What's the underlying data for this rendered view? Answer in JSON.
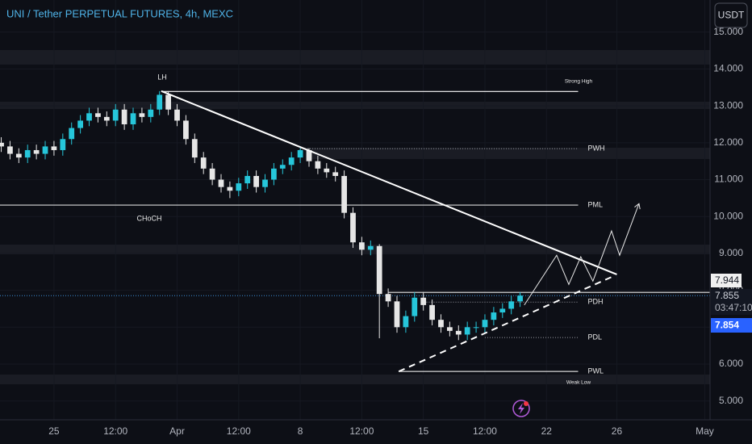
{
  "chart_data": {
    "type": "candlestick",
    "title": "UNI / Tether PERPETUAL FUTURES, 4h, MEXC",
    "currency_button": "USDT",
    "x": [
      -3,
      -2.5,
      -2,
      -1.5,
      -1,
      -0.5,
      0,
      0.5,
      1,
      1.5,
      2,
      2.5,
      3,
      3.5,
      4,
      4.5,
      5,
      5.5,
      6,
      6.5,
      7,
      7.5,
      8,
      8.5,
      9,
      9.5,
      10,
      10.5,
      11,
      11.5,
      12,
      12.5,
      13,
      13.5,
      14,
      14.5,
      15,
      15.5,
      16,
      16.5,
      17,
      17.5,
      18,
      18.5,
      19,
      19.5,
      20,
      20.5,
      21,
      21.5,
      22,
      22.5,
      23,
      23.5,
      24,
      24.5,
      25,
      25.5,
      26,
      26.5
    ],
    "open": [
      12.0,
      11.9,
      11.7,
      11.6,
      11.8,
      11.7,
      11.9,
      11.8,
      12.1,
      12.4,
      12.6,
      12.8,
      12.7,
      12.6,
      12.9,
      12.5,
      12.8,
      12.7,
      12.9,
      13.3,
      12.9,
      12.6,
      12.1,
      11.6,
      11.3,
      11.0,
      10.8,
      10.7,
      10.9,
      11.1,
      10.8,
      11.0,
      11.3,
      11.4,
      11.6,
      11.8,
      11.5,
      11.3,
      11.2,
      11.1,
      10.1,
      9.3,
      9.1,
      9.2,
      7.9,
      7.7,
      7.0,
      7.3,
      7.8,
      7.6,
      7.2,
      7.0,
      6.9,
      6.8,
      7.0,
      7.0,
      7.2,
      7.4,
      7.5,
      7.7
    ],
    "high": [
      12.15,
      12.05,
      11.85,
      11.95,
      11.95,
      12.05,
      12.05,
      12.25,
      12.55,
      12.75,
      12.95,
      12.95,
      12.85,
      13.05,
      13.05,
      12.95,
      12.95,
      13.05,
      13.4,
      13.4,
      13.05,
      12.75,
      12.25,
      11.75,
      11.45,
      11.15,
      10.95,
      11.05,
      11.25,
      11.25,
      11.15,
      11.45,
      11.55,
      11.75,
      11.85,
      11.85,
      11.65,
      11.45,
      11.35,
      11.25,
      10.25,
      9.45,
      9.35,
      9.25,
      8.05,
      7.85,
      7.45,
      7.95,
      7.95,
      7.75,
      7.35,
      7.15,
      7.05,
      7.15,
      7.15,
      7.35,
      7.55,
      7.65,
      7.85,
      7.95
    ],
    "low": [
      11.75,
      11.55,
      11.45,
      11.45,
      11.55,
      11.55,
      11.65,
      11.65,
      11.95,
      12.25,
      12.45,
      12.55,
      12.45,
      12.45,
      12.35,
      12.35,
      12.55,
      12.55,
      12.75,
      12.75,
      12.45,
      11.95,
      11.45,
      11.15,
      10.85,
      10.65,
      10.5,
      10.55,
      10.75,
      10.65,
      10.65,
      10.85,
      11.15,
      11.25,
      11.45,
      11.35,
      11.15,
      11.05,
      10.95,
      9.95,
      9.15,
      8.95,
      8.95,
      6.7,
      7.55,
      6.85,
      6.85,
      7.15,
      7.45,
      7.05,
      6.85,
      6.75,
      6.65,
      6.65,
      6.85,
      6.85,
      7.05,
      7.25,
      7.35,
      7.55
    ],
    "close": [
      11.9,
      11.7,
      11.6,
      11.8,
      11.7,
      11.9,
      11.8,
      12.1,
      12.4,
      12.6,
      12.8,
      12.7,
      12.6,
      12.9,
      12.5,
      12.8,
      12.7,
      12.9,
      13.3,
      12.9,
      12.6,
      12.1,
      11.6,
      11.3,
      11.0,
      10.8,
      10.7,
      10.9,
      11.1,
      10.8,
      11.0,
      11.3,
      11.4,
      11.6,
      11.8,
      11.5,
      11.3,
      11.2,
      11.1,
      10.1,
      9.3,
      9.1,
      9.2,
      7.9,
      7.7,
      7.0,
      7.3,
      7.8,
      7.6,
      7.2,
      7.0,
      6.9,
      6.8,
      7.0,
      7.0,
      7.2,
      7.4,
      7.5,
      7.7,
      7.855
    ],
    "up_color": "#26c6da",
    "down_color": "#e6e6e6",
    "xlim": [
      -3.07,
      37.3
    ],
    "xticks": [
      {
        "value": 0,
        "label": "25"
      },
      {
        "value": 3.5,
        "label": "12:00"
      },
      {
        "value": 7,
        "label": "Apr"
      },
      {
        "value": 10.5,
        "label": "12:00"
      },
      {
        "value": 14,
        "label": "8"
      },
      {
        "value": 17.5,
        "label": "12:00"
      },
      {
        "value": 21,
        "label": "15"
      },
      {
        "value": 24.5,
        "label": "12:00"
      },
      {
        "value": 28,
        "label": "22"
      },
      {
        "value": 32,
        "label": "26"
      },
      {
        "value": 37,
        "label": "May"
      }
    ],
    "ylim": [
      4.49,
      15.87
    ],
    "yticks": [
      {
        "value": 5,
        "label": "5.000"
      },
      {
        "value": 6,
        "label": "6.000"
      },
      {
        "value": 7,
        "label": "7.000"
      },
      {
        "value": 8,
        "label": "8.000"
      },
      {
        "value": 9,
        "label": "9.000"
      },
      {
        "value": 10,
        "label": "10.000"
      },
      {
        "value": 11,
        "label": "11.000"
      },
      {
        "value": 12,
        "label": "12.000"
      },
      {
        "value": 13,
        "label": "13.000"
      },
      {
        "value": 14,
        "label": "14.000"
      },
      {
        "value": 15,
        "label": "15.000"
      }
    ],
    "levels": [
      {
        "label": "PWH",
        "value": 11.84,
        "from": 14,
        "to": 29.8,
        "dotted": true
      },
      {
        "label": "PML",
        "value": 10.31,
        "from": -3.07,
        "to": 29.8,
        "dotted": false
      },
      {
        "label": "PDH",
        "value": 7.68,
        "from": 20.9,
        "to": 29.8,
        "dotted": true
      },
      {
        "label": "PDL",
        "value": 6.72,
        "from": 24.5,
        "to": 29.8,
        "dotted": true
      },
      {
        "label": "PWL",
        "value": 5.8,
        "from": 19.6,
        "to": 29.8,
        "dotted": false
      }
    ],
    "strong_high": {
      "label": "Strong High",
      "value": 13.39,
      "from": 6.1,
      "to": 29.8
    },
    "lh_label": "LH",
    "choch_label": "CHoCH",
    "weak_low_label": "Weak Low",
    "trendlines": [
      {
        "x": [
          6.1,
          32.0
        ],
        "y": [
          13.4,
          8.43
        ],
        "dashed": false
      },
      {
        "x": [
          19.6,
          31.7
        ],
        "y": [
          5.8,
          8.36
        ],
        "dashed": true
      }
    ],
    "projection": {
      "x": [
        26.74,
        28.58,
        29.27,
        29.95,
        30.64,
        31.7,
        32.16,
        33.26
      ],
      "y": [
        7.6,
        8.95,
        8.16,
        8.91,
        8.25,
        9.61,
        8.95,
        10.35
      ]
    },
    "marker_price": 7.944,
    "last_price": 7.855,
    "countdown": "03:47:10",
    "bid_price": 7.854
  }
}
